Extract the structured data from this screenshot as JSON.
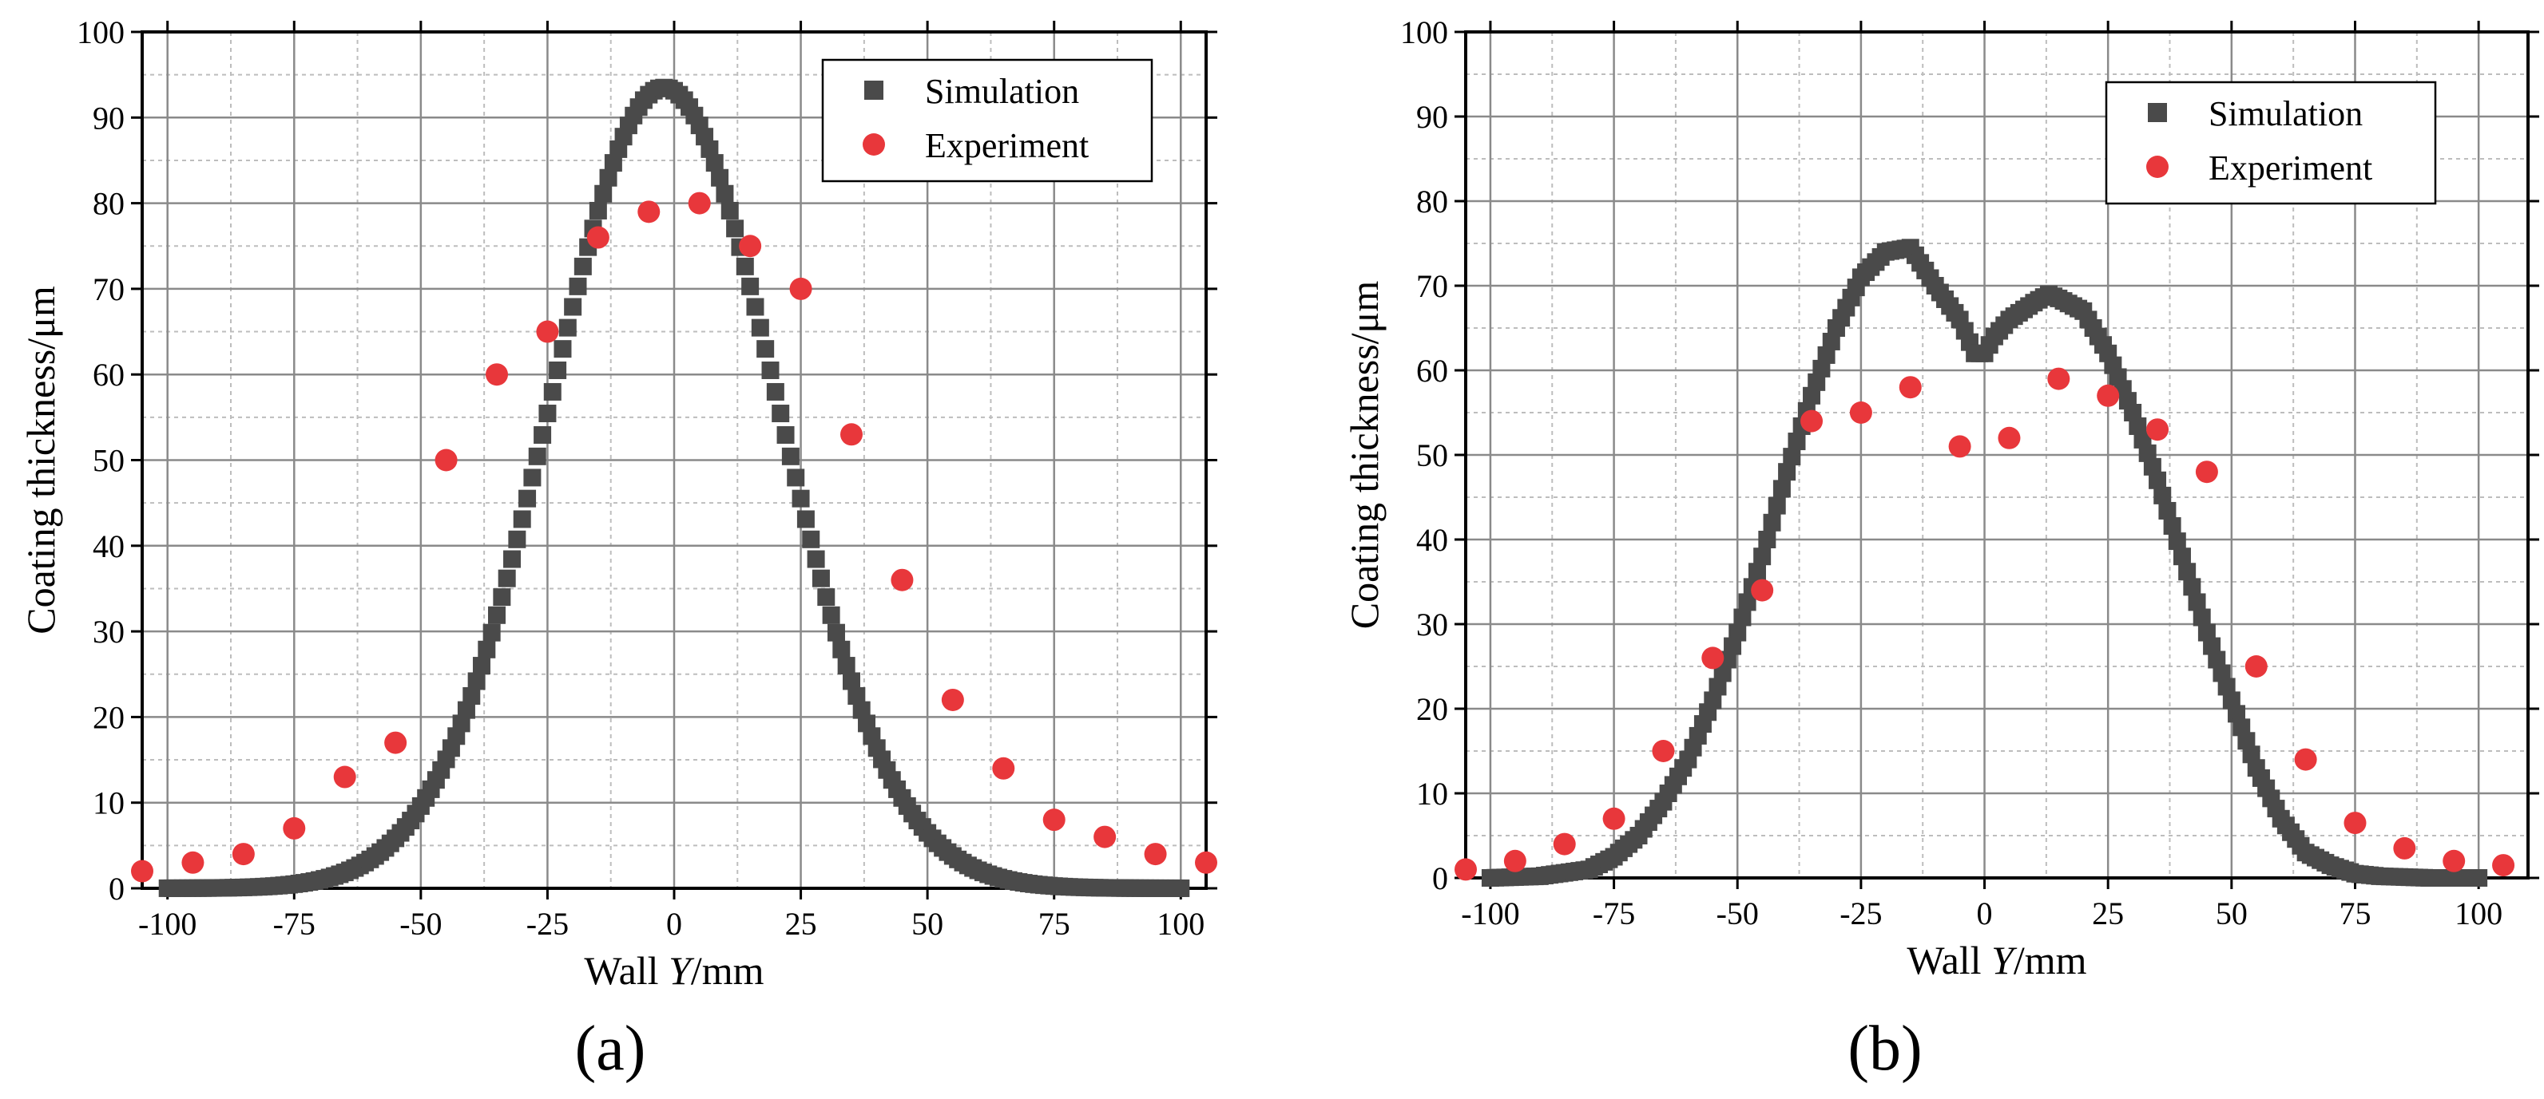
{
  "chart_data": [
    {
      "type": "scatter",
      "panel_label": "(a)",
      "xlabel_prefix": "Wall ",
      "xlabel_var": "Y",
      "xlabel_suffix": "/mm",
      "ylabel": "Coating thickness/μm",
      "xlim": [
        -105,
        105
      ],
      "ylim": [
        0,
        100
      ],
      "xticks": [
        -100,
        -75,
        -50,
        -25,
        0,
        25,
        50,
        75,
        100
      ],
      "yticks": [
        0,
        10,
        20,
        30,
        40,
        50,
        60,
        70,
        80,
        90,
        100
      ],
      "grid": true,
      "legend_position": "top-right",
      "series": [
        {
          "name": "Simulation",
          "marker": "square",
          "color": "#4a4a4a",
          "model": "gaussian",
          "params": {
            "amplitude": 93.5,
            "mean": -2,
            "sigma": 22.5
          },
          "x_start": -100,
          "x_end": 100,
          "x_step": 1
        },
        {
          "name": "Experiment",
          "marker": "circle",
          "color": "#e8373b",
          "x": [
            -105,
            -95,
            -85,
            -75,
            -65,
            -55,
            -45,
            -35,
            -25,
            -15,
            -5,
            5,
            15,
            25,
            35,
            45,
            55,
            65,
            75,
            85,
            95,
            105
          ],
          "y": [
            2,
            3,
            4,
            7,
            13,
            17,
            50,
            60,
            65,
            76,
            79,
            80,
            75,
            70,
            53,
            36,
            22,
            14,
            8,
            6,
            4,
            3
          ]
        }
      ]
    },
    {
      "type": "scatter",
      "panel_label": "(b)",
      "xlabel_prefix": "Wall ",
      "xlabel_var": "Y",
      "xlabel_suffix": "/mm",
      "ylabel": "Coating thickness/μm",
      "xlim": [
        -105,
        110
      ],
      "ylim": [
        0,
        100
      ],
      "xticks": [
        -100,
        -75,
        -50,
        -25,
        0,
        25,
        50,
        75,
        100
      ],
      "yticks": [
        0,
        10,
        20,
        30,
        40,
        50,
        60,
        70,
        80,
        90,
        100
      ],
      "grid": true,
      "legend_position": "top-right",
      "series": [
        {
          "name": "Simulation",
          "marker": "square",
          "color": "#4a4a4a",
          "model": "piecewise-linear",
          "x_step": 1,
          "knots_x": [
            -100,
            -90,
            -80,
            -75,
            -70,
            -65,
            -60,
            -55,
            -50,
            -45,
            -40,
            -35,
            -30,
            -25,
            -20,
            -15,
            -10,
            -5,
            -2,
            0,
            2,
            5,
            10,
            13,
            15,
            20,
            25,
            30,
            35,
            40,
            45,
            50,
            55,
            60,
            65,
            70,
            75,
            80,
            90,
            100
          ],
          "knots_y": [
            0,
            0.2,
            1,
            2.5,
            5,
            9,
            14,
            21,
            29,
            38,
            48,
            57,
            65,
            71,
            74,
            74.5,
            70,
            66,
            62,
            62,
            64,
            66,
            68,
            69,
            68.5,
            67,
            62,
            55,
            47,
            38,
            29,
            21,
            13,
            7,
            3,
            1.5,
            0.5,
            0.2,
            0,
            0
          ]
        },
        {
          "name": "Experiment",
          "marker": "circle",
          "color": "#e8373b",
          "x": [
            -105,
            -95,
            -85,
            -75,
            -65,
            -55,
            -45,
            -35,
            -25,
            -15,
            -5,
            5,
            15,
            25,
            35,
            45,
            55,
            65,
            75,
            85,
            95,
            105
          ],
          "y": [
            1,
            2,
            4,
            7,
            15,
            26,
            34,
            54,
            55,
            58,
            51,
            52,
            59,
            57,
            53,
            48,
            25,
            14,
            6.5,
            3.5,
            2,
            1.5
          ]
        }
      ]
    }
  ]
}
